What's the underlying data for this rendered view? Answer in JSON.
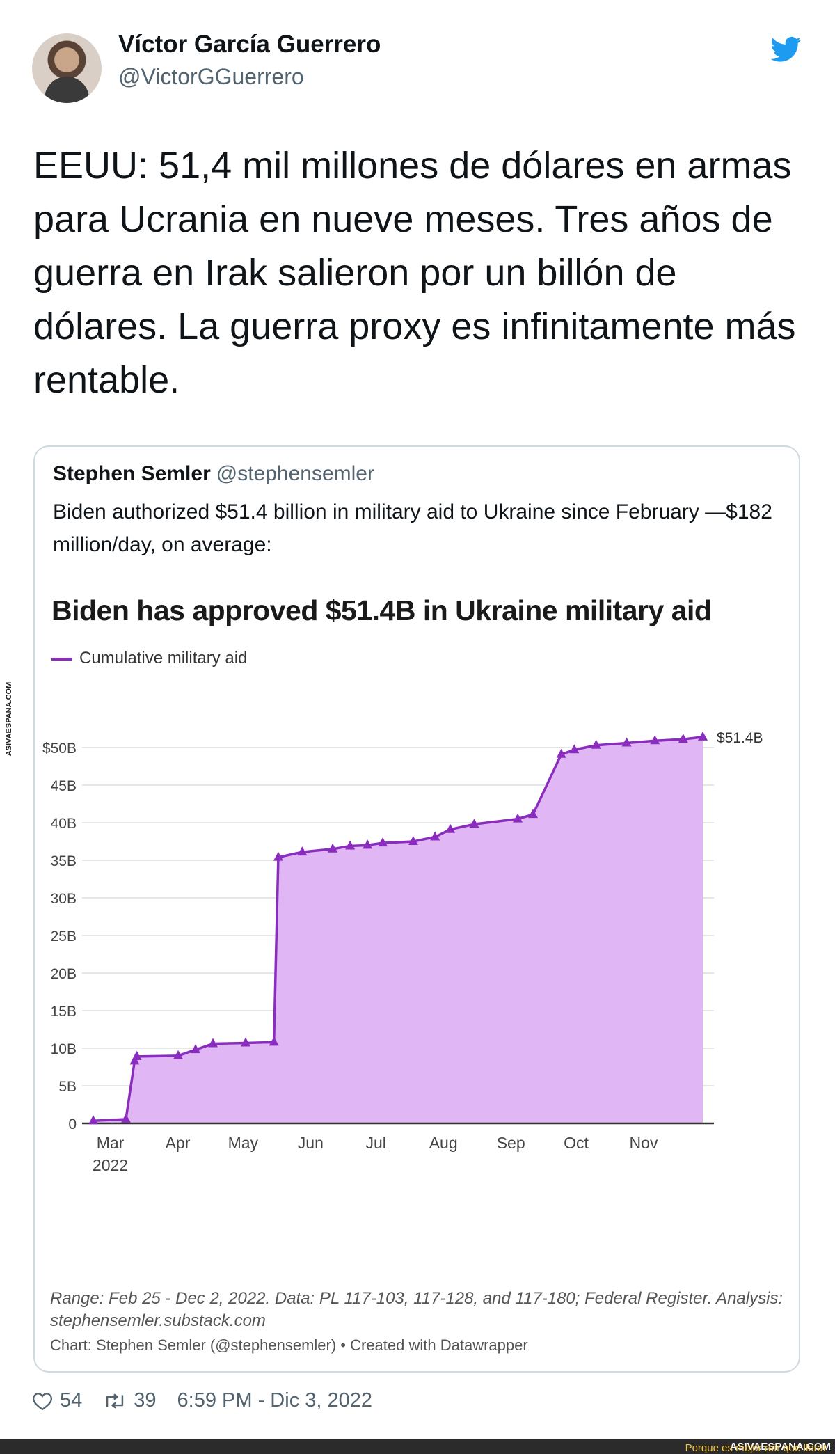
{
  "tweet": {
    "author_name": "Víctor García Guerrero",
    "author_handle": "@VictorGGuerrero",
    "text": "EEUU: 51,4 mil millones de dólares en armas para Ucrania en nueve meses. Tres años de guerra en Irak salieron por un billón de dólares. La guerra proxy es infinitamente más rentable.",
    "likes": "54",
    "retweets": "39",
    "timestamp": "6:59 PM - Dic 3, 2022",
    "icons": {
      "like": "heart-icon",
      "retweet": "retweet-icon",
      "brand": "twitter-bird-icon"
    },
    "colors": {
      "brand": "#1d9bf0",
      "muted": "#536471"
    }
  },
  "quoted_tweet": {
    "author_name": "Stephen Semler",
    "author_handle": "@stephensemler",
    "text": "Biden authorized $51.4 billion in military aid to Ukraine since February —$182 million/day, on average:"
  },
  "chart_data": {
    "type": "area",
    "title": "Biden has approved $51.4B in Ukraine military aid",
    "series": [
      {
        "name": "Cumulative military aid",
        "color": "#8a2cbd",
        "fill": "#e0b6f5",
        "points": [
          [
            "2022-02-25",
            0.35
          ],
          [
            "2022-03-12",
            0.55
          ],
          [
            "2022-03-16",
            8.3
          ],
          [
            "2022-03-17",
            8.9
          ],
          [
            "2022-04-05",
            9.0
          ],
          [
            "2022-04-13",
            9.8
          ],
          [
            "2022-04-21",
            10.6
          ],
          [
            "2022-05-06",
            10.7
          ],
          [
            "2022-05-19",
            10.8
          ],
          [
            "2022-05-21",
            35.4
          ],
          [
            "2022-06-01",
            36.1
          ],
          [
            "2022-06-15",
            36.5
          ],
          [
            "2022-06-23",
            36.9
          ],
          [
            "2022-07-01",
            37.0
          ],
          [
            "2022-07-08",
            37.3
          ],
          [
            "2022-07-22",
            37.5
          ],
          [
            "2022-08-01",
            38.1
          ],
          [
            "2022-08-08",
            39.1
          ],
          [
            "2022-08-19",
            39.8
          ],
          [
            "2022-09-08",
            40.5
          ],
          [
            "2022-09-15",
            41.1
          ],
          [
            "2022-09-28",
            49.1
          ],
          [
            "2022-10-04",
            49.7
          ],
          [
            "2022-10-14",
            50.3
          ],
          [
            "2022-10-28",
            50.6
          ],
          [
            "2022-11-10",
            50.9
          ],
          [
            "2022-11-23",
            51.1
          ],
          [
            "2022-12-02",
            51.4
          ]
        ]
      }
    ],
    "end_label": "$51.4B",
    "y_ticks": [
      "0",
      "5B",
      "10B",
      "15B",
      "20B",
      "25B",
      "30B",
      "35B",
      "40B",
      "45B",
      "$50B"
    ],
    "ylim": [
      0,
      50
    ],
    "x_ticks": [
      {
        "label": "Mar",
        "sub": "2022",
        "date": "2022-03-01"
      },
      {
        "label": "Apr",
        "sub": "",
        "date": "2022-04-01"
      },
      {
        "label": "May",
        "sub": "",
        "date": "2022-05-01"
      },
      {
        "label": "Jun",
        "sub": "",
        "date": "2022-06-01"
      },
      {
        "label": "Jul",
        "sub": "",
        "date": "2022-07-01"
      },
      {
        "label": "Aug",
        "sub": "",
        "date": "2022-08-01"
      },
      {
        "label": "Sep",
        "sub": "",
        "date": "2022-09-01"
      },
      {
        "label": "Oct",
        "sub": "",
        "date": "2022-10-01"
      },
      {
        "label": "Nov",
        "sub": "",
        "date": "2022-11-01"
      }
    ],
    "xlim": [
      "2022-02-25",
      "2022-12-02"
    ],
    "grid": true,
    "legend": "top-left",
    "notes": "Range: Feb 25 - Dec 2, 2022. Data: PL 117-103, 117-128, and 117-180; Federal Register. Analysis: stephensemler.substack.com",
    "credit": "Chart: Stephen Semler (@stephensemler) • Created with Datawrapper"
  },
  "watermark": {
    "side_text": "ASIVAESPANA.COM",
    "banner_text": "Porque es mejor reír que llorar",
    "banner_brand": "ASIVAESPANA.COM"
  }
}
